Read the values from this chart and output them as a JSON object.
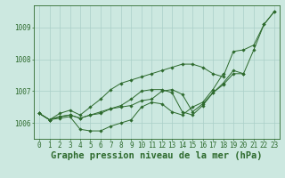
{
  "title": "Graphe pression niveau de la mer (hPa)",
  "xlabel_hours": [
    0,
    1,
    2,
    3,
    4,
    5,
    6,
    7,
    8,
    9,
    10,
    11,
    12,
    13,
    14,
    15,
    16,
    17,
    18,
    19,
    20,
    21,
    22,
    23
  ],
  "line1": [
    1006.3,
    1006.1,
    1006.15,
    1006.2,
    1005.8,
    1005.75,
    1005.75,
    1005.9,
    1006.0,
    1006.1,
    1006.5,
    1006.65,
    1006.6,
    1006.35,
    1006.25,
    1006.5,
    1006.65,
    1007.05,
    1007.55,
    null,
    null,
    null,
    null,
    null
  ],
  "line2": [
    1006.3,
    1006.1,
    1006.2,
    1006.25,
    1006.15,
    1006.25,
    1006.35,
    1006.45,
    1006.5,
    1006.55,
    1006.7,
    1006.75,
    1007.0,
    1007.05,
    1006.9,
    1006.35,
    1006.6,
    1006.95,
    1007.2,
    1007.55,
    1007.55,
    null,
    null,
    null
  ],
  "line3": [
    1006.3,
    1006.1,
    1006.2,
    1006.25,
    1006.15,
    1006.25,
    1006.3,
    1006.45,
    1006.55,
    1006.75,
    1007.0,
    1007.05,
    1007.05,
    1006.95,
    1006.35,
    1006.25,
    1006.55,
    1006.95,
    1007.25,
    1007.65,
    1007.55,
    1008.3,
    1009.1,
    1009.5
  ],
  "line4": [
    1006.3,
    1006.1,
    1006.3,
    1006.4,
    1006.25,
    1006.5,
    1006.75,
    1007.05,
    1007.25,
    1007.35,
    1007.45,
    1007.55,
    1007.65,
    1007.75,
    1007.85,
    1007.85,
    1007.75,
    1007.55,
    1007.45,
    1008.25,
    1008.3,
    1008.45,
    1009.1,
    1009.5
  ],
  "ylim": [
    1005.5,
    1009.7
  ],
  "yticks": [
    1006,
    1007,
    1008,
    1009
  ],
  "line_color": "#2d6a2d",
  "bg_color": "#cce8e0",
  "grid_color": "#aacfc8",
  "label_color": "#2d6a2d",
  "title_fontsize": 7.5,
  "tick_fontsize": 5.5
}
